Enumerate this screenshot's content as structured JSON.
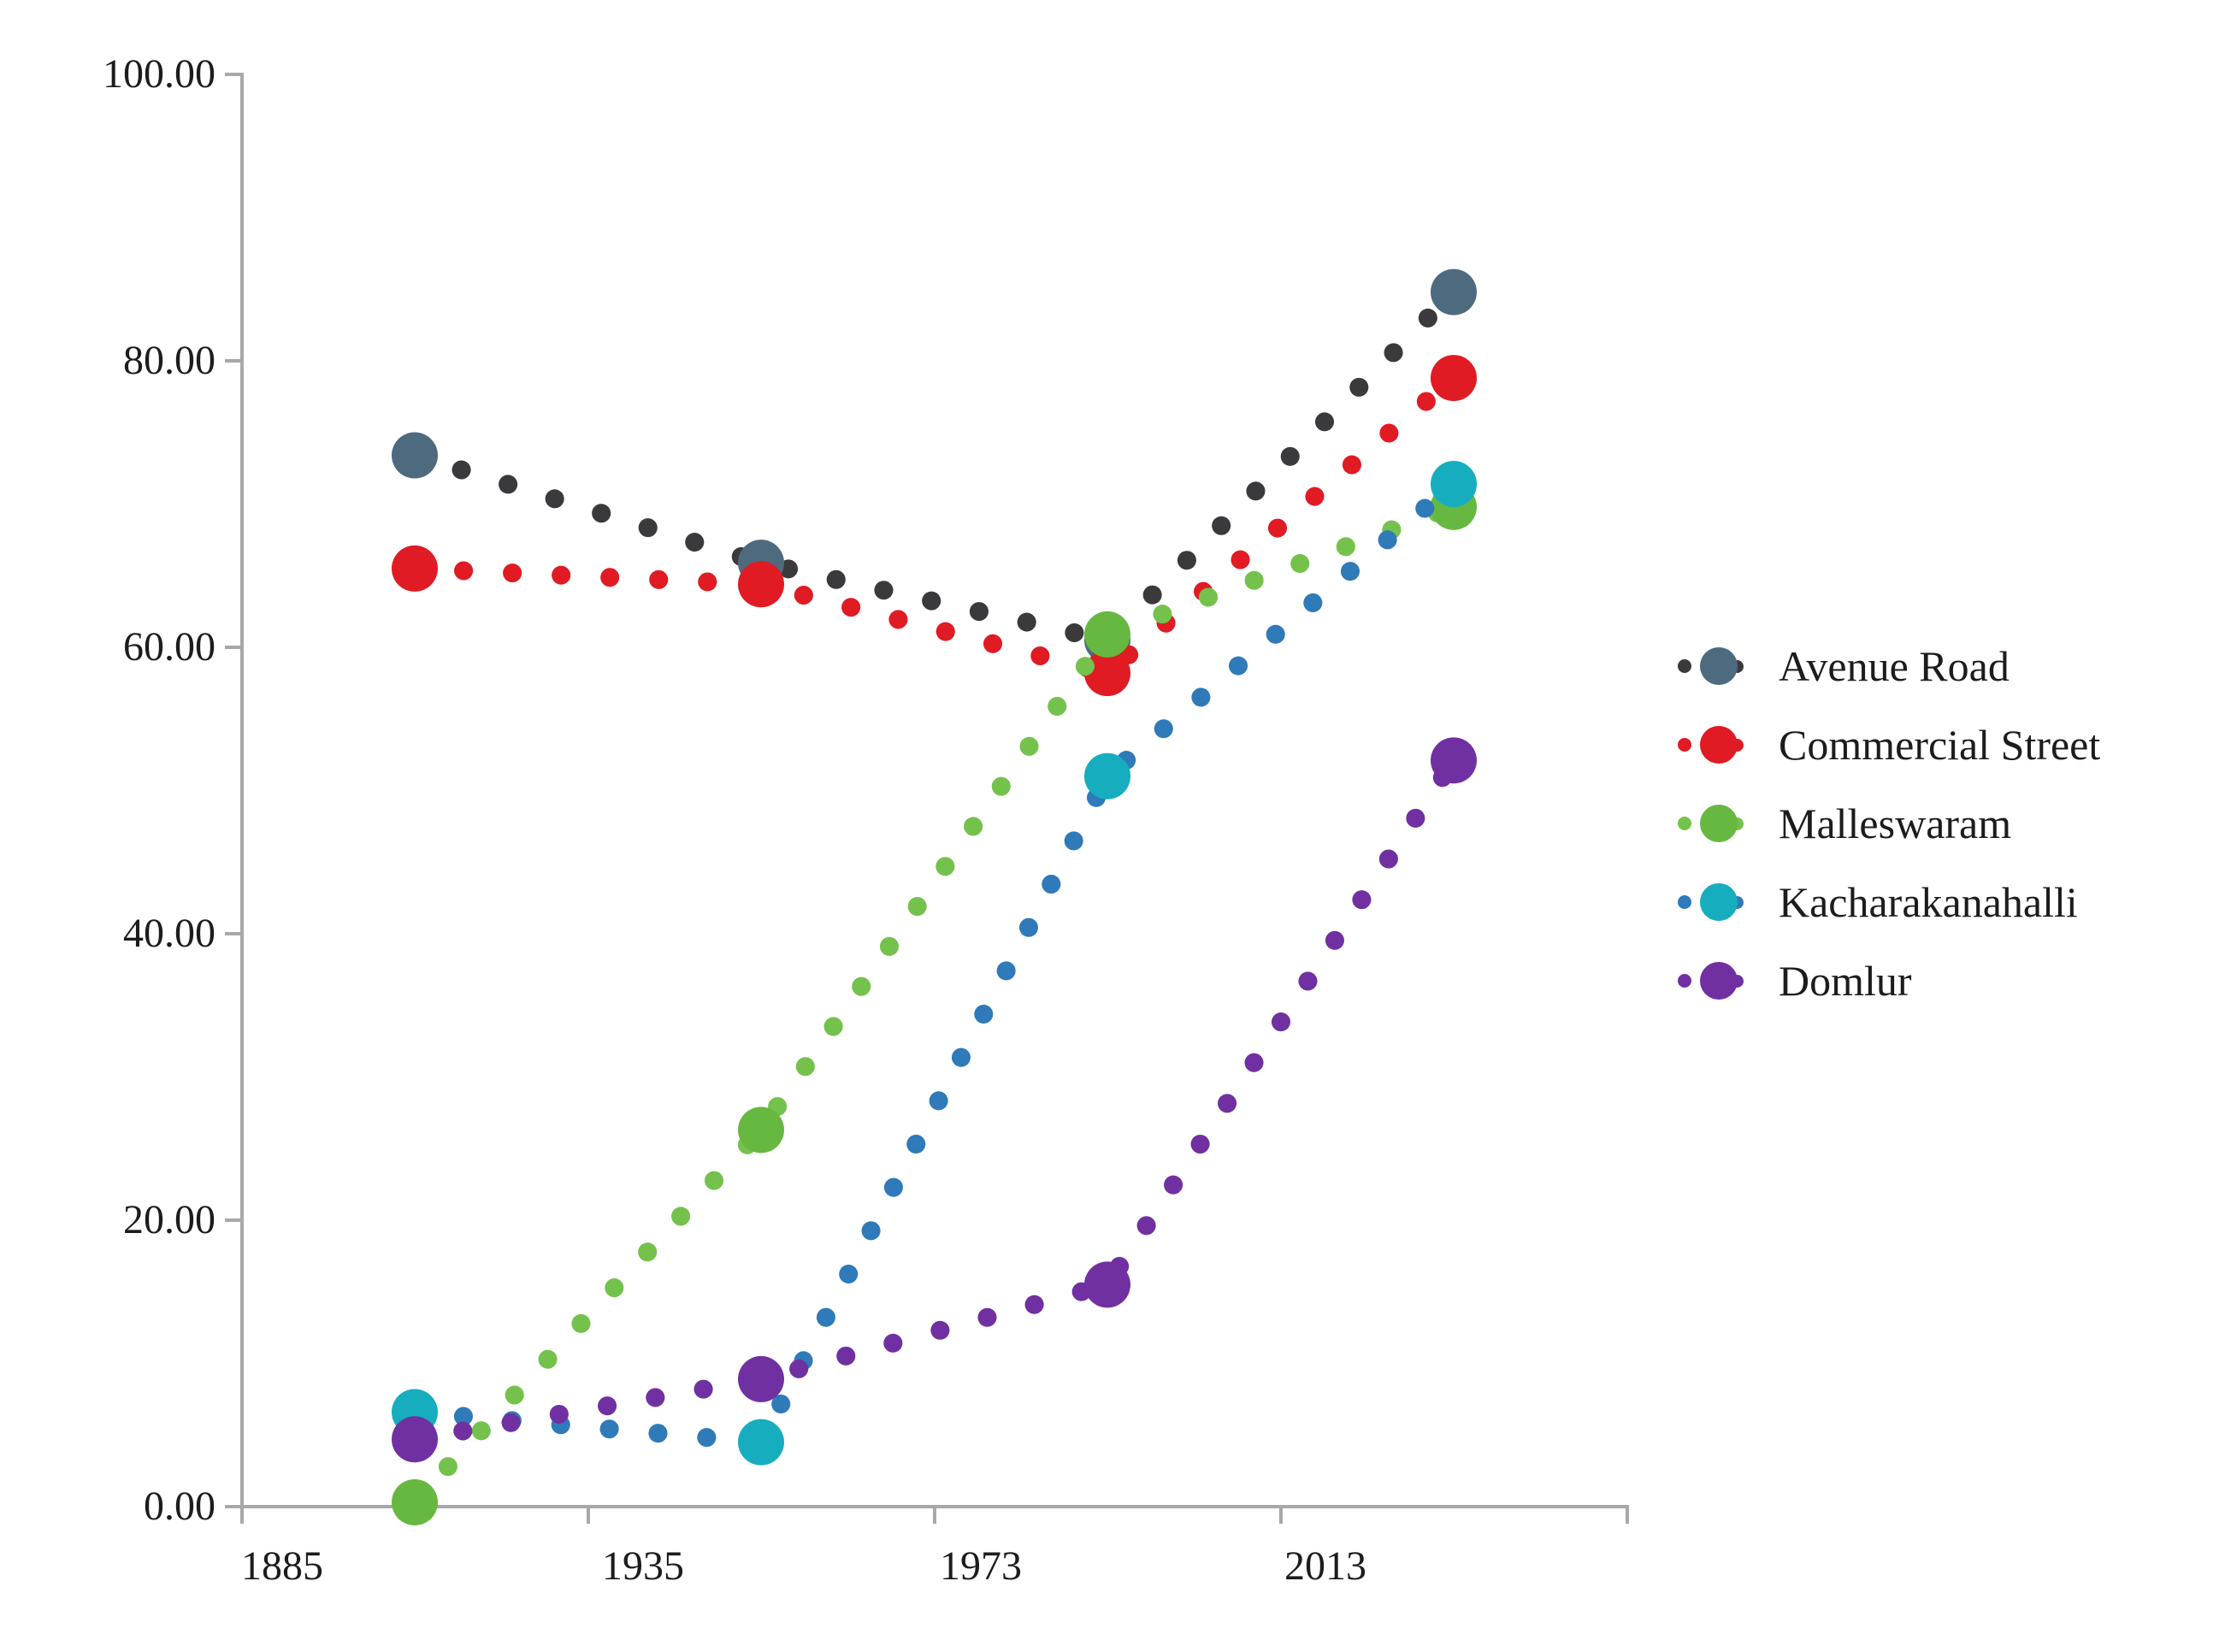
{
  "chart_data": {
    "type": "line",
    "title": "",
    "xlabel": "",
    "ylabel": "",
    "categories": [
      "1885",
      "1935",
      "1973",
      "2013"
    ],
    "x_tick_labels": [
      "1885",
      "1935",
      "1973",
      "2013"
    ],
    "y_tick_labels": [
      "100.00",
      "80.00",
      "60.00",
      "40.00",
      "20.00",
      "0.00"
    ],
    "ylim": [
      0,
      100
    ],
    "y_major_unit": 20,
    "grid": false,
    "line_style": "dotted",
    "legend_position": "right",
    "axis_color": "#a8a8a8",
    "text_color": "#1c1c1c",
    "series": [
      {
        "name": "Avenue Road",
        "values": [
          73.4,
          65.9,
          60.5,
          84.8
        ],
        "line_color": "#3a3a3c",
        "marker_color": "#4e6a7e"
      },
      {
        "name": "Commercial Street",
        "values": [
          65.5,
          64.4,
          58.2,
          78.8
        ],
        "line_color": "#e01b24",
        "marker_color": "#e01b24"
      },
      {
        "name": "Malleswaram",
        "values": [
          0.3,
          26.3,
          60.9,
          69.8
        ],
        "line_color": "#74c24c",
        "marker_color": "#67b840"
      },
      {
        "name": "Kacharakanahalli",
        "values": [
          6.6,
          4.5,
          51.0,
          71.4
        ],
        "line_color": "#2f7ab8",
        "marker_color": "#16adbf"
      },
      {
        "name": "Domlur",
        "values": [
          4.7,
          8.9,
          15.5,
          52.1
        ],
        "line_color": "#7130a1",
        "marker_color": "#7130a1"
      }
    ]
  }
}
